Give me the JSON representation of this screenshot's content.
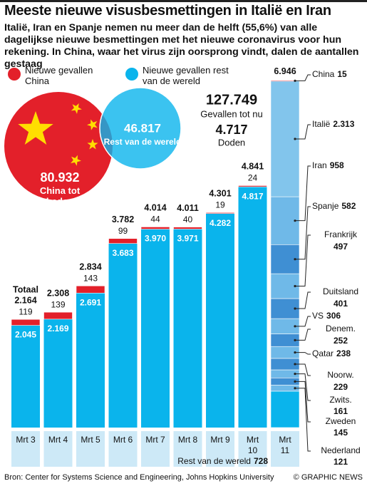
{
  "chart_data": {
    "type": "bar",
    "title": "Meeste nieuwe visusbesmettingen in Italië en Iran",
    "subtitle": "Italië, Iran en Spanje nemen nu meer dan de helft (55,6%) van alle dagelijkse nieuwe besmettingen met het nieuwe coronavirus voor hun rekening. In China, waar het virus zijn oorsprong vindt, dalen de aantallen gestaag",
    "categories": [
      "Mrt 3",
      "Mrt 4",
      "Mrt 5",
      "Mrt 6",
      "Mrt 7",
      "Mrt 8",
      "Mrt 9",
      "Mrt 10",
      "Mrt 11"
    ],
    "series": [
      {
        "name": "Nieuwe gevallen China",
        "color": "#e3202a",
        "values": [
          119,
          139,
          143,
          99,
          44,
          40,
          19,
          24,
          null
        ]
      },
      {
        "name": "Nieuwe gevallen rest van de wereld",
        "color": "#0ab4ec",
        "values": [
          2045,
          2169,
          2691,
          3683,
          3970,
          3971,
          4282,
          4817,
          null
        ],
        "value_labels": [
          "2.045",
          "2.169",
          "2.691",
          "3.683",
          "3.970",
          "3.971",
          "4.282",
          "4.817",
          null
        ]
      }
    ],
    "totals_label": "Totaal",
    "totals": {
      "values": [
        2164,
        2308,
        2834,
        3782,
        4014,
        4011,
        4301,
        4841,
        6946
      ],
      "value_labels": [
        "2.164",
        "2.308",
        "2.834",
        "3.782",
        "4.014",
        "4.011",
        "4.301",
        "4.841",
        "6.946"
      ]
    },
    "breakdown": [
      {
        "name": "China",
        "value": 15,
        "color": "#e3202a"
      },
      {
        "name": "Italië",
        "value": 2313,
        "value_label": "2.313",
        "color": "#82c5ec"
      },
      {
        "name": "Iran",
        "value": 958,
        "color": "#6fb9e8"
      },
      {
        "name": "Spanje",
        "value": 582,
        "color": "#3f8fd3"
      },
      {
        "name": "Frankrijk",
        "value": 497,
        "color": "#6fb9e8"
      },
      {
        "name": "Duitsland",
        "value": 401,
        "color": "#3f8fd3"
      },
      {
        "name": "VS",
        "value": 306,
        "color": "#6fb9e8"
      },
      {
        "name": "Denem.",
        "value": 252,
        "color": "#3f8fd3"
      },
      {
        "name": "Qatar",
        "value": 238,
        "color": "#6fb9e8"
      },
      {
        "name": "Noorw.",
        "value": 229,
        "color": "#3f8fd3"
      },
      {
        "name": "Zwits.",
        "value": 161,
        "color": "#6fb9e8"
      },
      {
        "name": "Zweden",
        "value": 145,
        "color": "#3f8fd3"
      },
      {
        "name": "Nederland",
        "value": 121,
        "color": "#6fb9e8"
      },
      {
        "name": "Rest van de wereld",
        "value": 728,
        "color": "#0ab4ec"
      }
    ],
    "ylim": [
      0,
      7000
    ],
    "summary": {
      "china": {
        "value": 80932,
        "value_label": "80.932",
        "label": "China tot heden"
      },
      "world": {
        "value": 46817,
        "value_label": "46.817",
        "label": "Rest van de wereld"
      },
      "cases": {
        "value": 127749,
        "value_label": "127.749",
        "label": "Gevallen tot nu"
      },
      "deaths": {
        "value": 4717,
        "value_label": "4.717",
        "label": "Doden"
      }
    },
    "watermark": "GRAPHIC NEWS",
    "source": "Bron: Center for Systems Science and Engineering, Johns Hopkins University",
    "credit": "© GRAPHIC NEWS"
  }
}
